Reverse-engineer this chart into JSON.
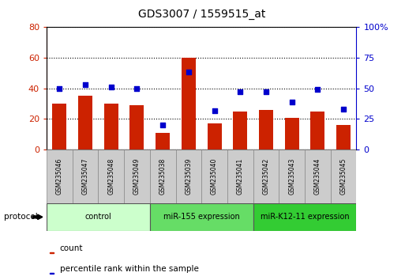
{
  "title": "GDS3007 / 1559515_at",
  "categories": [
    "GSM235046",
    "GSM235047",
    "GSM235048",
    "GSM235049",
    "GSM235038",
    "GSM235039",
    "GSM235040",
    "GSM235041",
    "GSM235042",
    "GSM235043",
    "GSM235044",
    "GSM235045"
  ],
  "bar_values": [
    30,
    35,
    30,
    29,
    11,
    60,
    17,
    25,
    26,
    21,
    25,
    16
  ],
  "dot_values": [
    50,
    53,
    51,
    50,
    20,
    63,
    32,
    47,
    47,
    39,
    49,
    33
  ],
  "bar_color": "#cc2200",
  "dot_color": "#0000cc",
  "ylim_left": [
    0,
    80
  ],
  "ylim_right": [
    0,
    100
  ],
  "yticks_left": [
    0,
    20,
    40,
    60,
    80
  ],
  "yticks_right": [
    0,
    25,
    50,
    75,
    100
  ],
  "ytick_labels_right": [
    "0",
    "25",
    "50",
    "75",
    "100%"
  ],
  "groups": [
    {
      "label": "control",
      "start": 0,
      "end": 4,
      "color": "#ccffcc"
    },
    {
      "label": "miR-155 expression",
      "start": 4,
      "end": 8,
      "color": "#66dd66"
    },
    {
      "label": "miR-K12-11 expression",
      "start": 8,
      "end": 12,
      "color": "#33cc33"
    }
  ],
  "protocol_label": "protocol",
  "bar_width": 0.55,
  "bg_plot": "#ffffff"
}
